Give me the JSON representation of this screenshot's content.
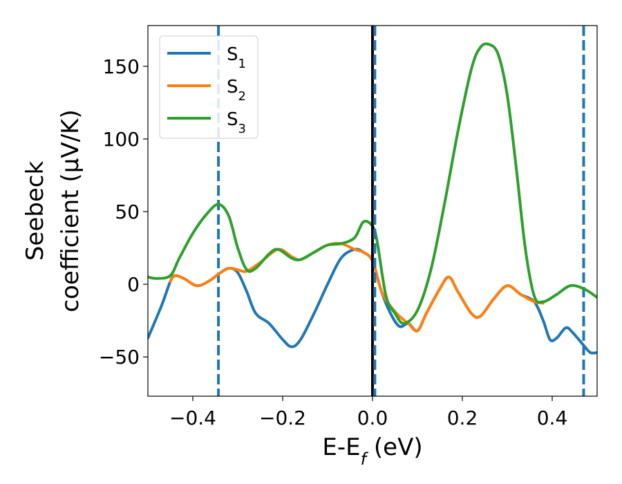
{
  "chart_data": {
    "type": "line",
    "xlabel": "E-E_f (eV)",
    "ylabel_line1": "Seebeck",
    "ylabel_line2": "coefficient  (μV/K)",
    "xlim": [
      -0.5,
      0.5
    ],
    "ylim": [
      -77,
      178
    ],
    "xticks": [
      -0.4,
      -0.2,
      0.0,
      0.2,
      0.4
    ],
    "xtick_labels": [
      "−0.4",
      "−0.2",
      "0.0",
      "0.2",
      "0.4"
    ],
    "yticks": [
      -50,
      0,
      50,
      100,
      150
    ],
    "ytick_labels": [
      "−50",
      "0",
      "50",
      "100",
      "150"
    ],
    "legend": {
      "placement": "upper-left"
    },
    "vertical_lines": [
      {
        "x": -0.343,
        "style": "dashed",
        "color": "#1f77b4"
      },
      {
        "x": 0.0,
        "style": "solid",
        "color": "#000000"
      },
      {
        "x": 0.005,
        "style": "dashed",
        "color": "#1f77b4"
      },
      {
        "x": 0.47,
        "style": "dashed",
        "color": "#1f77b4"
      }
    ],
    "series": [
      {
        "name": "S1",
        "legend_base": "S",
        "legend_sub": "1",
        "color": "#1f77b4",
        "points": [
          [
            -0.5,
            -37
          ],
          [
            -0.47,
            -15
          ],
          [
            -0.45,
            2
          ],
          [
            -0.44,
            6
          ],
          [
            -0.42,
            4
          ],
          [
            -0.39,
            -1
          ],
          [
            -0.36,
            3
          ],
          [
            -0.343,
            7
          ],
          [
            -0.32,
            11
          ],
          [
            -0.3,
            8
          ],
          [
            -0.28,
            -5
          ],
          [
            -0.26,
            -20
          ],
          [
            -0.23,
            -27
          ],
          [
            -0.2,
            -38
          ],
          [
            -0.18,
            -43
          ],
          [
            -0.16,
            -38
          ],
          [
            -0.13,
            -20
          ],
          [
            -0.1,
            0
          ],
          [
            -0.07,
            18
          ],
          [
            -0.04,
            24
          ],
          [
            -0.02,
            22
          ],
          [
            0.0,
            16
          ],
          [
            0.02,
            -5
          ],
          [
            0.04,
            -20
          ],
          [
            0.06,
            -29
          ],
          [
            0.08,
            -27
          ],
          [
            0.1,
            -32
          ],
          [
            0.12,
            -20
          ],
          [
            0.15,
            -3
          ],
          [
            0.17,
            5
          ],
          [
            0.19,
            -5
          ],
          [
            0.22,
            -20
          ],
          [
            0.24,
            -22
          ],
          [
            0.27,
            -10
          ],
          [
            0.3,
            -1
          ],
          [
            0.33,
            -7
          ],
          [
            0.36,
            -12
          ],
          [
            0.38,
            -25
          ],
          [
            0.395,
            -38
          ],
          [
            0.41,
            -37
          ],
          [
            0.43,
            -30
          ],
          [
            0.445,
            -33
          ],
          [
            0.47,
            -42
          ],
          [
            0.485,
            -47
          ],
          [
            0.5,
            -47
          ]
        ]
      },
      {
        "name": "S2",
        "legend_base": "S",
        "legend_sub": "2",
        "color": "#ff7f0e",
        "points": [
          [
            -0.45,
            2
          ],
          [
            -0.44,
            6
          ],
          [
            -0.42,
            4
          ],
          [
            -0.39,
            -1
          ],
          [
            -0.36,
            3
          ],
          [
            -0.343,
            7
          ],
          [
            -0.32,
            11
          ],
          [
            -0.3,
            10
          ],
          [
            -0.28,
            9
          ],
          [
            -0.25,
            15
          ],
          [
            -0.21,
            24
          ],
          [
            -0.18,
            19
          ],
          [
            -0.16,
            17
          ],
          [
            -0.13,
            22
          ],
          [
            -0.1,
            27
          ],
          [
            -0.07,
            28
          ],
          [
            -0.04,
            24
          ],
          [
            -0.02,
            22
          ],
          [
            0.0,
            16
          ],
          [
            0.02,
            -5
          ],
          [
            0.04,
            -15
          ],
          [
            0.06,
            -22
          ],
          [
            0.08,
            -27
          ],
          [
            0.1,
            -32
          ],
          [
            0.12,
            -20
          ],
          [
            0.15,
            -3
          ],
          [
            0.17,
            5
          ],
          [
            0.19,
            -5
          ],
          [
            0.22,
            -20
          ],
          [
            0.24,
            -22
          ],
          [
            0.27,
            -10
          ],
          [
            0.3,
            -1
          ],
          [
            0.33,
            -7
          ],
          [
            0.36,
            -12
          ],
          [
            0.38,
            -13
          ]
        ]
      },
      {
        "name": "S3",
        "legend_base": "S",
        "legend_sub": "3",
        "color": "#2ca02c",
        "points": [
          [
            -0.5,
            5
          ],
          [
            -0.48,
            4
          ],
          [
            -0.45,
            6
          ],
          [
            -0.43,
            18
          ],
          [
            -0.4,
            35
          ],
          [
            -0.37,
            48
          ],
          [
            -0.343,
            55
          ],
          [
            -0.32,
            47
          ],
          [
            -0.3,
            25
          ],
          [
            -0.28,
            10
          ],
          [
            -0.26,
            11
          ],
          [
            -0.23,
            21
          ],
          [
            -0.21,
            24
          ],
          [
            -0.18,
            18
          ],
          [
            -0.16,
            17
          ],
          [
            -0.13,
            22
          ],
          [
            -0.1,
            27
          ],
          [
            -0.07,
            28
          ],
          [
            -0.04,
            32
          ],
          [
            -0.02,
            43
          ],
          [
            0.0,
            40
          ],
          [
            0.01,
            30
          ],
          [
            0.03,
            -8
          ],
          [
            0.05,
            -20
          ],
          [
            0.07,
            -27
          ],
          [
            0.1,
            -18
          ],
          [
            0.13,
            10
          ],
          [
            0.16,
            55
          ],
          [
            0.19,
            105
          ],
          [
            0.22,
            148
          ],
          [
            0.24,
            163
          ],
          [
            0.26,
            165
          ],
          [
            0.28,
            158
          ],
          [
            0.3,
            130
          ],
          [
            0.32,
            80
          ],
          [
            0.34,
            25
          ],
          [
            0.36,
            -8
          ],
          [
            0.38,
            -12
          ],
          [
            0.41,
            -7
          ],
          [
            0.44,
            -1
          ],
          [
            0.47,
            -3
          ],
          [
            0.5,
            -9
          ]
        ]
      }
    ]
  }
}
